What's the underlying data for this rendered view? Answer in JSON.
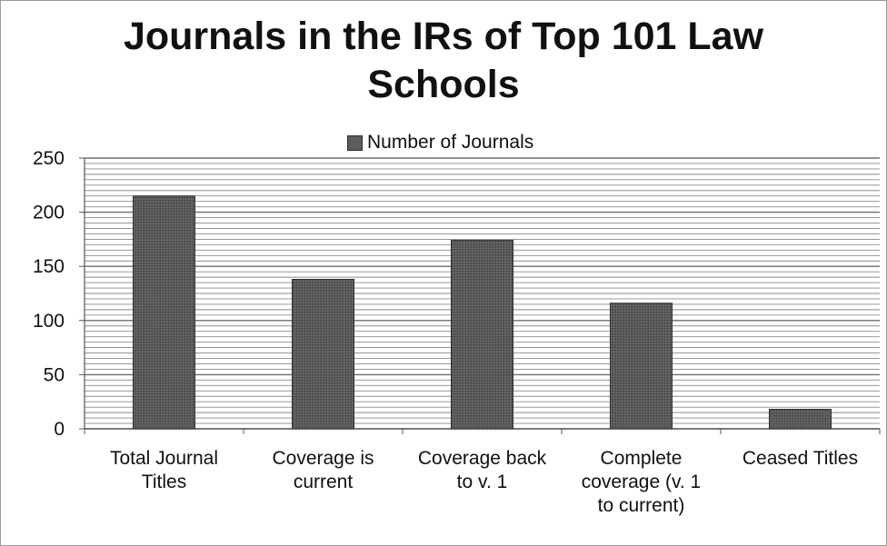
{
  "chart_data": {
    "type": "bar",
    "title": "Journals in the IRs of Top 101 Law Schools",
    "title_lines": [
      "Journals in the IRs of Top 101 Law",
      "Schools"
    ],
    "categories": [
      "Total Journal\nTitles",
      "Coverage is\ncurrent",
      "Coverage back\nto v. 1",
      "Complete\ncoverage (v. 1\nto current)",
      "Ceased Titles"
    ],
    "series": [
      {
        "name": "Number of Journals",
        "values": [
          215,
          138,
          174,
          116,
          18
        ]
      }
    ],
    "ylim": [
      0,
      250
    ],
    "yticks": [
      0,
      50,
      100,
      150,
      200,
      250
    ],
    "xlabel": "",
    "ylabel": "",
    "grid": true,
    "legend_position": "top",
    "colors": {
      "bar": "#5a5a5a",
      "bar_edge": "#2e2e2e",
      "grid": "#8a8a8a",
      "axis": "#555555"
    }
  }
}
